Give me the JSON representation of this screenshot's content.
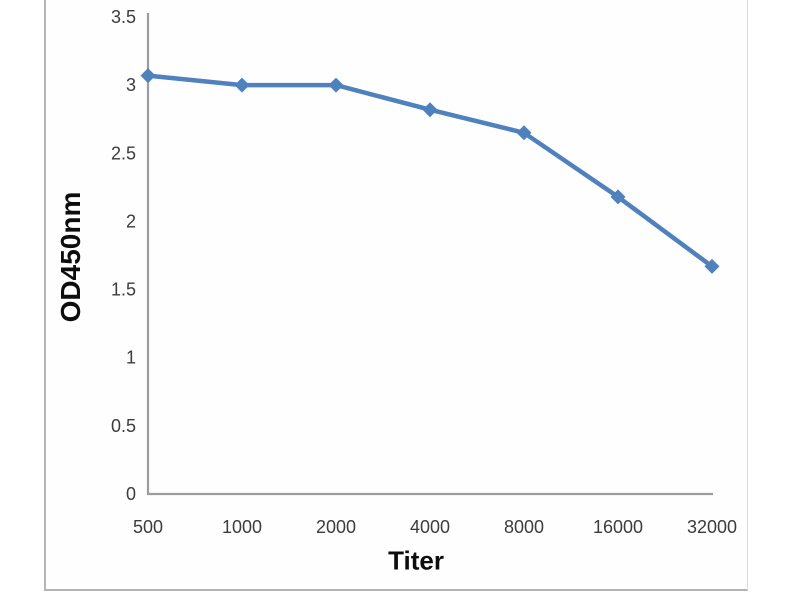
{
  "chart_data": {
    "type": "line",
    "title": "",
    "xlabel": "Titer",
    "ylabel": "OD450nm",
    "categories": [
      "500",
      "1000",
      "2000",
      "4000",
      "8000",
      "16000",
      "32000"
    ],
    "series": [
      {
        "name": "OD450nm",
        "values": [
          3.07,
          3.0,
          3.0,
          2.82,
          2.65,
          2.18,
          1.67
        ]
      }
    ],
    "ylim": [
      0,
      3.5
    ],
    "yticks": [
      "0",
      "0.5",
      "1",
      "1.5",
      "2",
      "2.5",
      "3",
      "3.5"
    ],
    "grid": false,
    "legend": "none",
    "line_color": "#4f81bd",
    "marker": "diamond",
    "axis_color": "#9c9c9c"
  }
}
